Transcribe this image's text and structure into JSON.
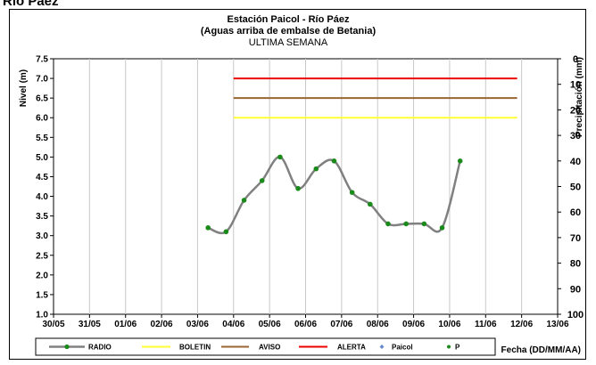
{
  "page_title": "Río Páez",
  "chart_data": {
    "type": "line",
    "title": "Estación Paicol  - Río Páez",
    "subtitle": "(Aguas arriba de embalse de Betania)",
    "subtitle2": "ULTIMA SEMANA",
    "ylabel": "Nivel (m)",
    "ylabel_right": "Precipitación (mm)",
    "xlabel": "Fecha  (DD/MM/AA)",
    "x_ticks": [
      "30/05",
      "31/05",
      "01/06",
      "02/06",
      "03/06",
      "04/06",
      "05/06",
      "06/06",
      "07/06",
      "08/06",
      "09/06",
      "10/06",
      "11/06",
      "12/06",
      "13/06"
    ],
    "y_ticks": [
      "1.0",
      "1.5",
      "2.0",
      "2.5",
      "3.0",
      "3.5",
      "4.0",
      "4.5",
      "5.0",
      "5.5",
      "6.0",
      "6.5",
      "7.0",
      "7.5"
    ],
    "y2_ticks": [
      "0",
      "10",
      "20",
      "30",
      "40",
      "50",
      "60",
      "70",
      "80",
      "90",
      "100"
    ],
    "ylim": [
      1.0,
      7.5
    ],
    "y2lim": [
      0,
      100
    ],
    "y2_inverted": true,
    "xlim": [
      "30/05",
      "13/06"
    ],
    "grid": "vertical",
    "series": [
      {
        "name": "RADIO",
        "color": "#808080",
        "marker_color": "#1a8a1a",
        "x": [
          "03/06 07:00",
          "03/06 19:00",
          "04/06 07:00",
          "04/06 19:00",
          "05/06 07:00",
          "05/06 19:00",
          "06/06 07:00",
          "06/06 19:00",
          "07/06 07:00",
          "07/06 19:00",
          "08/06 07:00",
          "08/06 19:00",
          "09/06 07:00",
          "09/06 19:00",
          "10/06 07:00"
        ],
        "y": [
          3.2,
          3.1,
          3.9,
          4.4,
          5.0,
          4.2,
          4.7,
          4.9,
          4.1,
          3.8,
          3.3,
          3.3,
          3.3,
          3.2,
          4.9
        ]
      },
      {
        "name": "BOLETIN",
        "color": "#ffff33",
        "x": [
          "04/06",
          "11/06 21:00"
        ],
        "y": [
          6.0,
          6.0
        ]
      },
      {
        "name": "AVISO",
        "color": "#996633",
        "x": [
          "04/06",
          "11/06 21:00"
        ],
        "y": [
          6.5,
          6.5
        ]
      },
      {
        "name": "ALERTA",
        "color": "#ee0000",
        "x": [
          "04/06",
          "11/06 21:00"
        ],
        "y": [
          7.0,
          7.0
        ]
      },
      {
        "name": "Paicol",
        "color": "#6688cc",
        "x": [],
        "y": []
      },
      {
        "name": "P",
        "color": "#1a8a1a",
        "x": [],
        "y": []
      }
    ],
    "legend_position": "bottom"
  }
}
